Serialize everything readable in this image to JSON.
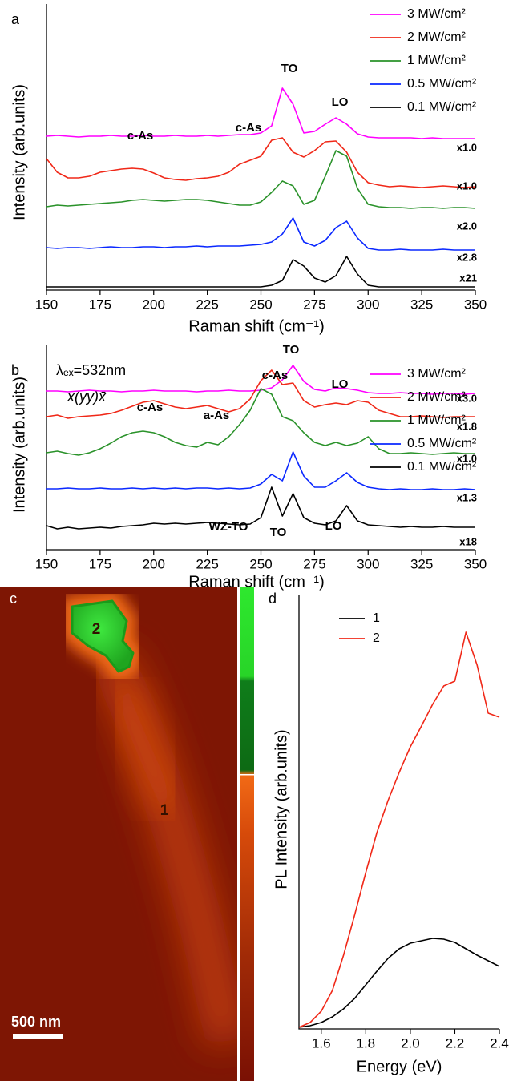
{
  "chart_data": [
    {
      "type": "line",
      "panel_label": "a",
      "x_label": "Raman shift (cm⁻¹)",
      "y_label": "Intensity (arb.units)",
      "x": [
        150,
        155,
        160,
        165,
        170,
        175,
        180,
        185,
        190,
        195,
        200,
        205,
        210,
        215,
        220,
        225,
        230,
        235,
        240,
        245,
        250,
        255,
        260,
        265,
        270,
        275,
        280,
        285,
        290,
        295,
        300,
        305,
        310,
        315,
        320,
        325,
        330,
        335,
        340,
        345,
        350
      ],
      "xlim": [
        150,
        350
      ],
      "xticks": [
        150,
        175,
        200,
        225,
        250,
        275,
        300,
        325,
        350
      ],
      "ylim": [
        0,
        357
      ],
      "legend": "upper right",
      "series": [
        {
          "name": "3 MW/cm²",
          "color": "#ff00ff",
          "values": [
            192,
            193,
            192,
            191,
            192,
            192,
            193,
            192,
            192,
            193,
            192,
            192,
            193,
            192,
            192,
            193,
            192,
            193,
            194,
            194,
            196,
            205,
            252,
            232,
            196,
            198,
            207,
            215,
            207,
            195,
            191,
            190,
            190,
            190,
            190,
            189,
            190,
            189,
            189,
            189,
            189
          ]
        },
        {
          "name": "2 MW/cm²",
          "color": "#f02818",
          "values": [
            164,
            147,
            140,
            140,
            142,
            147,
            149,
            151,
            152,
            151,
            146,
            140,
            138,
            137,
            139,
            140,
            142,
            147,
            157,
            162,
            167,
            187,
            190,
            172,
            166,
            174,
            185,
            186,
            172,
            147,
            134,
            131,
            129,
            130,
            129,
            128,
            129,
            130,
            129,
            128,
            129
          ]
        },
        {
          "name": "1 MW/cm²",
          "color": "#2a922a",
          "values": [
            104,
            106,
            105,
            106,
            107,
            108,
            109,
            110,
            112,
            113,
            112,
            111,
            112,
            113,
            113,
            112,
            110,
            108,
            106,
            106,
            110,
            122,
            136,
            130,
            107,
            112,
            142,
            174,
            167,
            127,
            107,
            104,
            103,
            103,
            102,
            103,
            103,
            102,
            103,
            103,
            102
          ]
        },
        {
          "name": "0.5 MW/cm²",
          "color": "#0a28ff",
          "values": [
            53,
            52,
            53,
            53,
            52,
            53,
            54,
            53,
            53,
            54,
            54,
            53,
            54,
            54,
            55,
            54,
            55,
            55,
            55,
            56,
            57,
            60,
            70,
            90,
            60,
            55,
            62,
            78,
            86,
            65,
            52,
            50,
            50,
            51,
            50,
            50,
            50,
            51,
            50,
            50,
            50
          ]
        },
        {
          "name": "0.1 MW/cm²",
          "color": "#000000",
          "values": [
            4,
            4,
            4,
            4,
            4,
            4,
            4,
            4,
            4,
            4,
            4,
            4,
            4,
            4,
            4,
            4,
            4,
            4,
            4,
            4,
            4,
            6,
            12,
            38,
            30,
            15,
            10,
            18,
            42,
            20,
            6,
            4,
            4,
            4,
            4,
            4,
            4,
            4,
            4,
            4,
            4
          ]
        }
      ],
      "annotations": [
        "TO",
        "LO",
        "c-As",
        "c-As",
        "x1.0",
        "x1.0",
        "x2.0",
        "x2.8",
        "x21"
      ]
    },
    {
      "type": "line",
      "panel_label": "b",
      "x_label": "Raman shift (cm⁻¹)",
      "y_label": "Intensity (arb.units)",
      "excitation": "λₑₓ=532nm",
      "geometry": "x(yy)x̄",
      "x": [
        150,
        155,
        160,
        165,
        170,
        175,
        180,
        185,
        190,
        195,
        200,
        205,
        210,
        215,
        220,
        225,
        230,
        235,
        240,
        245,
        250,
        255,
        260,
        265,
        270,
        275,
        280,
        285,
        290,
        295,
        300,
        305,
        310,
        315,
        320,
        325,
        330,
        335,
        340,
        345,
        350
      ],
      "xlim": [
        150,
        350
      ],
      "xticks": [
        150,
        175,
        200,
        225,
        250,
        275,
        300,
        325,
        350
      ],
      "ylim": [
        0,
        256
      ],
      "legend": "upper right",
      "series": [
        {
          "name": "3 MW/cm²",
          "color": "#ff00ff",
          "values": [
            198,
            198,
            197,
            198,
            199,
            198,
            198,
            197,
            198,
            198,
            199,
            198,
            198,
            198,
            197,
            198,
            198,
            199,
            198,
            198,
            199,
            202,
            212,
            230,
            210,
            200,
            198,
            202,
            201,
            199,
            196,
            195,
            195,
            196,
            195,
            195,
            194,
            195,
            195,
            194,
            195
          ]
        },
        {
          "name": "2 MW/cm²",
          "color": "#f02818",
          "values": [
            166,
            168,
            164,
            166,
            167,
            168,
            170,
            174,
            179,
            184,
            186,
            182,
            178,
            176,
            178,
            180,
            176,
            172,
            176,
            188,
            211,
            224,
            206,
            208,
            186,
            178,
            181,
            183,
            181,
            186,
            184,
            174,
            170,
            166,
            166,
            167,
            166,
            165,
            166,
            166,
            166
          ]
        },
        {
          "name": "1 MW/cm²",
          "color": "#2a922a",
          "values": [
            121,
            123,
            120,
            118,
            121,
            126,
            133,
            141,
            146,
            148,
            146,
            141,
            134,
            130,
            128,
            134,
            131,
            141,
            156,
            174,
            201,
            194,
            166,
            161,
            146,
            134,
            130,
            134,
            130,
            133,
            141,
            126,
            120,
            120,
            121,
            120,
            119,
            120,
            121,
            120,
            120
          ]
        },
        {
          "name": "0.5 MW/cm²",
          "color": "#0a28ff",
          "values": [
            76,
            76,
            77,
            76,
            76,
            77,
            76,
            76,
            77,
            76,
            77,
            76,
            77,
            76,
            77,
            77,
            76,
            77,
            76,
            77,
            82,
            94,
            86,
            122,
            92,
            78,
            78,
            86,
            96,
            84,
            78,
            76,
            75,
            76,
            75,
            75,
            76,
            75,
            75,
            76,
            75
          ]
        },
        {
          "name": "0.1 MW/cm²",
          "color": "#000000",
          "values": [
            30,
            26,
            28,
            26,
            27,
            28,
            27,
            29,
            30,
            31,
            33,
            32,
            33,
            32,
            33,
            34,
            33,
            32,
            31,
            32,
            40,
            78,
            42,
            70,
            40,
            33,
            31,
            36,
            55,
            36,
            31,
            30,
            29,
            28,
            29,
            28,
            28,
            29,
            28,
            28,
            28
          ]
        }
      ],
      "annotations": [
        "TO",
        "LO",
        "c-As",
        "c-As",
        "a-As",
        "WZ-TO",
        "TO",
        "LO",
        "x3.0",
        "x1.8",
        "x1.0",
        "x1.3",
        "x18"
      ]
    },
    {
      "type": "map",
      "panel_label": "c",
      "region_labels": [
        "2",
        "1"
      ],
      "scale_bar": "500 nm"
    },
    {
      "type": "line",
      "panel_label": "d",
      "x_label": "Energy (eV)",
      "y_label": "PL Intensity (arb.units)",
      "x": [
        1.5,
        1.55,
        1.6,
        1.65,
        1.7,
        1.75,
        1.8,
        1.85,
        1.9,
        1.95,
        2.0,
        2.05,
        2.1,
        2.15,
        2.2,
        2.25,
        2.3,
        2.35,
        2.4
      ],
      "xlim": [
        1.5,
        2.4
      ],
      "xticks": [
        1.6,
        1.8,
        {
          "value": 2,
          "label": "2.0"
        },
        2.2,
        2.4
      ],
      "ylim": [
        0,
        541
      ],
      "legend": "upper left",
      "series": [
        {
          "name": "1",
          "color": "#000000",
          "values": [
            2,
            4,
            8,
            15,
            25,
            38,
            55,
            72,
            88,
            100,
            107,
            110,
            113,
            112,
            108,
            100,
            92,
            85,
            78
          ]
        },
        {
          "name": "2",
          "color": "#f02818",
          "values": [
            2,
            8,
            22,
            48,
            92,
            142,
            195,
            245,
            285,
            320,
            352,
            378,
            405,
            428,
            434,
            495,
            454,
            394,
            389
          ]
        }
      ]
    }
  ]
}
